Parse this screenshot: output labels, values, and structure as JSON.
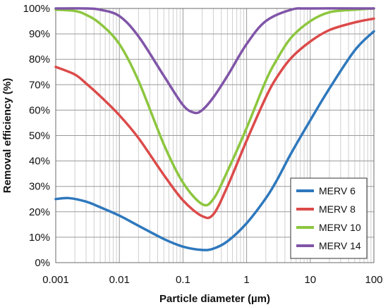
{
  "chart_data": {
    "type": "line",
    "title": "",
    "xlabel": "Particle diameter (µm)",
    "ylabel": "Removal efficiency (%)",
    "x_scale": "log",
    "xlim": [
      0.001,
      100
    ],
    "ylim": [
      0,
      100
    ],
    "x_ticks": [
      0.001,
      0.01,
      0.1,
      1,
      10,
      100
    ],
    "x_tick_labels": [
      "0.001",
      "0.01",
      "0.1",
      "1",
      "10",
      "100"
    ],
    "y_ticks": [
      0,
      10,
      20,
      30,
      40,
      50,
      60,
      70,
      80,
      90,
      100
    ],
    "y_tick_labels": [
      "0%",
      "10%",
      "20%",
      "30%",
      "40%",
      "50%",
      "60%",
      "70%",
      "80%",
      "90%",
      "100%"
    ],
    "grid": true,
    "legend_position": "bottom-right",
    "series": [
      {
        "name": "MERV 6",
        "color": "#2e78bd",
        "points": [
          [
            0.001,
            25
          ],
          [
            0.0016,
            25.4
          ],
          [
            0.003,
            24
          ],
          [
            0.005,
            21.8
          ],
          [
            0.01,
            18.5
          ],
          [
            0.02,
            14.5
          ],
          [
            0.05,
            9.3
          ],
          [
            0.1,
            6.3
          ],
          [
            0.2,
            5
          ],
          [
            0.3,
            5.5
          ],
          [
            0.5,
            8.4
          ],
          [
            1,
            15.5
          ],
          [
            2,
            25.3
          ],
          [
            3,
            32.5
          ],
          [
            5,
            43
          ],
          [
            10,
            56
          ],
          [
            20,
            68.5
          ],
          [
            50,
            83.5
          ],
          [
            100,
            91
          ]
        ]
      },
      {
        "name": "MERV 8",
        "color": "#dc4a4a",
        "points": [
          [
            0.001,
            77
          ],
          [
            0.002,
            74
          ],
          [
            0.003,
            70.5
          ],
          [
            0.005,
            65.5
          ],
          [
            0.01,
            58
          ],
          [
            0.02,
            49
          ],
          [
            0.05,
            34.5
          ],
          [
            0.1,
            24.5
          ],
          [
            0.2,
            18.3
          ],
          [
            0.3,
            19
          ],
          [
            0.5,
            30
          ],
          [
            1,
            48
          ],
          [
            2,
            65
          ],
          [
            3,
            73
          ],
          [
            5,
            80.5
          ],
          [
            10,
            87
          ],
          [
            20,
            91.5
          ],
          [
            50,
            94.5
          ],
          [
            100,
            96
          ]
        ]
      },
      {
        "name": "MERV 10",
        "color": "#8dc63f",
        "points": [
          [
            0.001,
            99.5
          ],
          [
            0.002,
            99
          ],
          [
            0.003,
            97.5
          ],
          [
            0.005,
            94
          ],
          [
            0.01,
            86
          ],
          [
            0.02,
            71.5
          ],
          [
            0.05,
            46.5
          ],
          [
            0.1,
            31.5
          ],
          [
            0.2,
            23
          ],
          [
            0.3,
            25
          ],
          [
            0.5,
            36
          ],
          [
            1,
            53
          ],
          [
            2,
            71.5
          ],
          [
            3,
            80
          ],
          [
            5,
            88.5
          ],
          [
            10,
            95
          ],
          [
            20,
            98.5
          ],
          [
            50,
            99.5
          ],
          [
            100,
            100
          ]
        ]
      },
      {
        "name": "MERV 14",
        "color": "#8055a8",
        "points": [
          [
            0.001,
            100
          ],
          [
            0.003,
            100
          ],
          [
            0.005,
            99.5
          ],
          [
            0.01,
            97
          ],
          [
            0.02,
            89
          ],
          [
            0.05,
            73.5
          ],
          [
            0.1,
            62
          ],
          [
            0.15,
            59
          ],
          [
            0.2,
            60
          ],
          [
            0.3,
            65
          ],
          [
            0.5,
            73.5
          ],
          [
            1,
            86
          ],
          [
            2,
            95
          ],
          [
            5,
            99.5
          ],
          [
            10,
            100
          ],
          [
            100,
            100
          ]
        ]
      }
    ]
  }
}
